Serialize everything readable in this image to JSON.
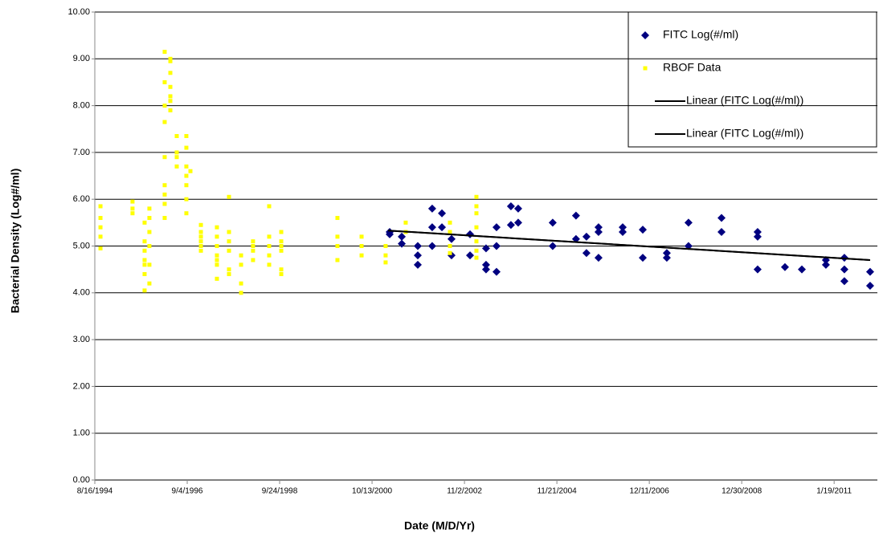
{
  "chart_data": {
    "type": "scatter",
    "x_label": "Date (M/D/Yr)",
    "y_label": "Bacterial Density (Log#/ml)",
    "xlim": [
      34562,
      40913
    ],
    "ylim": [
      0,
      10
    ],
    "xticks": [
      {
        "value": 34562,
        "label": "8/16/1994"
      },
      {
        "value": 35312,
        "label": "9/4/1996"
      },
      {
        "value": 36062,
        "label": "9/24/1998"
      },
      {
        "value": 36812,
        "label": "10/13/2000"
      },
      {
        "value": 37562,
        "label": "11/2/2002"
      },
      {
        "value": 38312,
        "label": "11/21/2004"
      },
      {
        "value": 39062,
        "label": "12/11/2006"
      },
      {
        "value": 39812,
        "label": "12/30/2008"
      },
      {
        "value": 40562,
        "label": "1/19/2011"
      }
    ],
    "yticks": [
      {
        "value": 0,
        "label": "0.00"
      },
      {
        "value": 1,
        "label": "1.00"
      },
      {
        "value": 2,
        "label": "2.00"
      },
      {
        "value": 3,
        "label": "3.00"
      },
      {
        "value": 4,
        "label": "4.00"
      },
      {
        "value": 5,
        "label": "5.00"
      },
      {
        "value": 6,
        "label": "6.00"
      },
      {
        "value": 7,
        "label": "7.00"
      },
      {
        "value": 8,
        "label": "8.00"
      },
      {
        "value": 9,
        "label": "9.00"
      },
      {
        "value": 10,
        "label": "10.00"
      }
    ],
    "grid": true,
    "legend": "top-right",
    "series": [
      {
        "name": "FITC Log(#/ml)",
        "color": "#000080",
        "marker": "diamond",
        "x": [
          36955,
          36955,
          37053,
          37053,
          37183,
          37183,
          37183,
          37300,
          37300,
          37300,
          37379,
          37379,
          37457,
          37457,
          37607,
          37607,
          37737,
          37737,
          37737,
          37822,
          37822,
          37822,
          37939,
          37939,
          37998,
          37998,
          38278,
          38278,
          38467,
          38467,
          38552,
          38552,
          38650,
          38650,
          38650,
          38846,
          38846,
          39009,
          39009,
          39204,
          39204,
          39380,
          39380,
          39648,
          39648,
          39941,
          39941,
          39941,
          40163,
          40300,
          40495,
          40495,
          40645,
          40645,
          40645,
          40854,
          40854
        ],
        "values": [
          5.3,
          5.25,
          5.05,
          5.2,
          4.6,
          4.8,
          5.0,
          5.0,
          5.4,
          5.8,
          5.4,
          5.7,
          4.8,
          5.15,
          4.8,
          5.25,
          4.6,
          4.5,
          4.95,
          4.45,
          5.0,
          5.4,
          5.45,
          5.85,
          5.5,
          5.8,
          5.0,
          5.5,
          5.65,
          5.15,
          4.85,
          5.2,
          4.75,
          5.3,
          5.4,
          5.3,
          5.4,
          4.75,
          5.35,
          4.75,
          4.85,
          5.0,
          5.5,
          5.3,
          5.6,
          4.5,
          5.2,
          5.3,
          4.55,
          4.5,
          4.6,
          4.7,
          4.25,
          4.5,
          4.75,
          4.15,
          4.45
        ]
      },
      {
        "name": "RBOF Data",
        "color": "#ffff00",
        "marker": "square",
        "x": [
          34608,
          34608,
          34608,
          34608,
          34608,
          34868,
          34868,
          34868,
          34966,
          34966,
          34966,
          34966,
          34966,
          34966,
          34966,
          35005,
          35005,
          35005,
          35005,
          35005,
          35005,
          35129,
          35129,
          35129,
          35129,
          35129,
          35129,
          35129,
          35129,
          35129,
          35175,
          35175,
          35175,
          35175,
          35175,
          35175,
          35175,
          35227,
          35227,
          35227,
          35227,
          35305,
          35305,
          35305,
          35305,
          35305,
          35305,
          35305,
          35338,
          35423,
          35423,
          35423,
          35423,
          35423,
          35423,
          35553,
          35553,
          35553,
          35553,
          35553,
          35553,
          35553,
          35651,
          35651,
          35651,
          35651,
          35651,
          35651,
          35749,
          35749,
          35749,
          35749,
          35846,
          35846,
          35846,
          35846,
          35977,
          35977,
          35977,
          35977,
          35977,
          36075,
          36075,
          36075,
          36075,
          36075,
          36075,
          36531,
          36531,
          36531,
          36531,
          36727,
          36727,
          36727,
          36922,
          36922,
          36922,
          37085,
          37085,
          37444,
          37444,
          37444,
          37444,
          37659,
          37659,
          37659,
          37659,
          37659,
          37659,
          37659
        ],
        "values": [
          4.95,
          5.2,
          5.4,
          5.6,
          5.85,
          5.7,
          5.8,
          5.95,
          4.05,
          4.4,
          4.6,
          4.7,
          5.1,
          5.5,
          4.9,
          4.2,
          4.6,
          5.0,
          5.3,
          5.6,
          5.8,
          5.6,
          5.9,
          6.1,
          6.3,
          6.9,
          7.65,
          8.0,
          8.5,
          9.15,
          8.2,
          8.4,
          8.7,
          8.95,
          9.0,
          8.1,
          7.9,
          6.7,
          6.9,
          7.0,
          7.35,
          5.7,
          6.0,
          6.3,
          6.5,
          6.7,
          7.1,
          7.35,
          6.6,
          4.9,
          5.1,
          5.3,
          5.0,
          5.2,
          5.45,
          4.3,
          4.6,
          4.8,
          5.0,
          5.2,
          5.4,
          4.7,
          4.9,
          5.1,
          6.05,
          4.4,
          4.5,
          5.3,
          4.0,
          4.2,
          4.6,
          4.8,
          5.0,
          4.7,
          4.9,
          5.1,
          4.6,
          4.8,
          5.0,
          5.2,
          5.85,
          4.9,
          5.0,
          5.1,
          5.3,
          4.4,
          4.5,
          4.7,
          5.0,
          5.2,
          5.6,
          4.8,
          5.0,
          5.2,
          4.65,
          4.8,
          5.0,
          5.3,
          5.5,
          4.85,
          5.0,
          5.3,
          5.5,
          4.75,
          4.9,
          5.1,
          5.4,
          5.7,
          6.05,
          5.85
        ]
      },
      {
        "name": "Linear (FITC Log(#/ml))",
        "color": "#000000",
        "marker": "line",
        "x": [
          36942,
          40854
        ],
        "values": [
          5.33,
          4.7
        ]
      },
      {
        "name": "Linear (FITC Log(#/ml))",
        "color": "#000000",
        "marker": "line",
        "x": [
          36942,
          40854
        ],
        "values": [
          5.33,
          4.7
        ]
      }
    ]
  }
}
